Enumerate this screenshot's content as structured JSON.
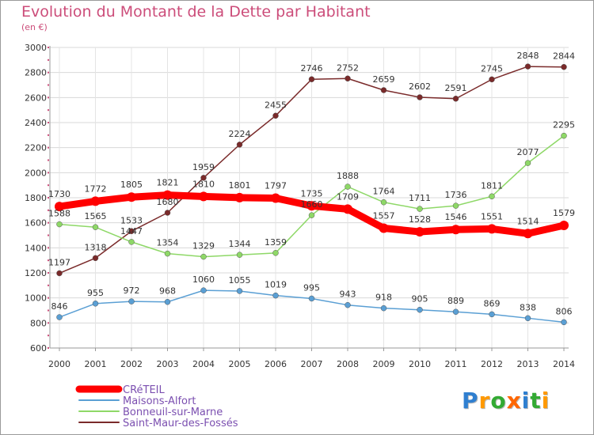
{
  "chart_data": {
    "type": "line",
    "title": "Evolution du Montant de la Dette par Habitant",
    "subtitle": "(en €)",
    "x": [
      "2000",
      "2001",
      "2002",
      "2003",
      "2004",
      "2005",
      "2006",
      "2007",
      "2008",
      "2009",
      "2010",
      "2011",
      "2012",
      "2013",
      "2014"
    ],
    "ylim": [
      600,
      3000
    ],
    "yticks": [
      600,
      800,
      1000,
      1200,
      1400,
      1600,
      1800,
      2000,
      2200,
      2400,
      2600,
      2800,
      3000
    ],
    "grid": true,
    "legend_position": "bottom-left",
    "series": [
      {
        "name": "CRéTEIL",
        "color": "#ff0000",
        "values": [
          1730,
          1772,
          1805,
          1821,
          1810,
          1801,
          1797,
          1735,
          1709,
          1557,
          1528,
          1546,
          1551,
          1514,
          1579
        ]
      },
      {
        "name": "Maisons-Alfort",
        "color": "#5a9fd4",
        "values": [
          846,
          955,
          972,
          968,
          1060,
          1055,
          1019,
          995,
          943,
          918,
          905,
          889,
          869,
          838,
          806
        ]
      },
      {
        "name": "Bonneuil-sur-Marne",
        "color": "#8ed867",
        "values": [
          1588,
          1565,
          1447,
          1354,
          1329,
          1344,
          1359,
          1660,
          1888,
          1764,
          1711,
          1736,
          1811,
          2077,
          2295
        ]
      },
      {
        "name": "Saint-Maur-des-Fossés",
        "color": "#7a2a2a",
        "values": [
          1197,
          1318,
          1533,
          1680,
          1959,
          2224,
          2455,
          2746,
          2752,
          2659,
          2602,
          2591,
          2745,
          2848,
          2844
        ]
      }
    ]
  },
  "logo": {
    "letters": [
      "P",
      "r",
      "o",
      "x",
      "i",
      "t",
      "i"
    ],
    "colors": [
      "#2f7fd0",
      "#ff9900",
      "#33aa33",
      "#ff6600",
      "#2f7fd0",
      "#33aa33",
      "#ff9900"
    ]
  }
}
